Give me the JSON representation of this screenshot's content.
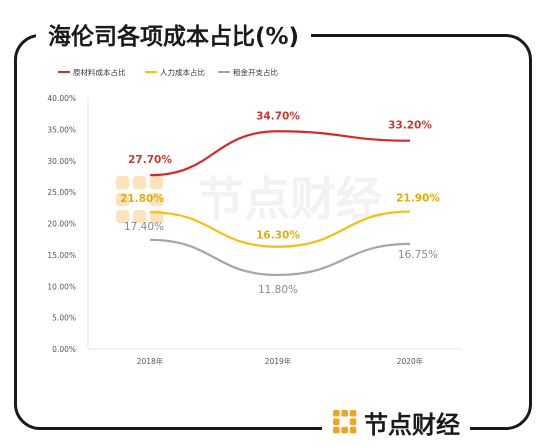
{
  "title": "海伦司各项成本占比(%)",
  "watermark": "节点财经",
  "footer_brand": "节点财经",
  "colors": {
    "raw": "#d42a2a",
    "labor": "#f2c012",
    "rent": "#a6a6a6",
    "grid": "#e6e6e6",
    "logo_orange": "#f3a41e",
    "logo_watermark": "#fbe3bb"
  },
  "chart_data": {
    "type": "line",
    "categories": [
      "2018年",
      "2019年",
      "2020年"
    ],
    "yticks": [
      "0.00%",
      "5.00%",
      "10.00%",
      "15.00%",
      "20.00%",
      "25.00%",
      "30.00%",
      "35.00%",
      "40.00%"
    ],
    "ylim": [
      0,
      40
    ],
    "legend_position": "top-left",
    "grid": false,
    "series": [
      {
        "name": "原材料成本占比",
        "values": [
          27.7,
          34.7,
          33.2
        ],
        "labels": [
          "27.70%",
          "34.70%",
          "33.20%"
        ],
        "color": "#d42a2a"
      },
      {
        "name": "人力成本占比",
        "values": [
          21.8,
          16.3,
          21.9
        ],
        "labels": [
          "21.80%",
          "16.30%",
          "21.90%"
        ],
        "color": "#f2c012"
      },
      {
        "name": "租金开支占比",
        "values": [
          17.4,
          11.8,
          16.75
        ],
        "labels": [
          "17.40%",
          "11.80%",
          "16.75%"
        ],
        "color": "#a6a6a6"
      }
    ]
  }
}
